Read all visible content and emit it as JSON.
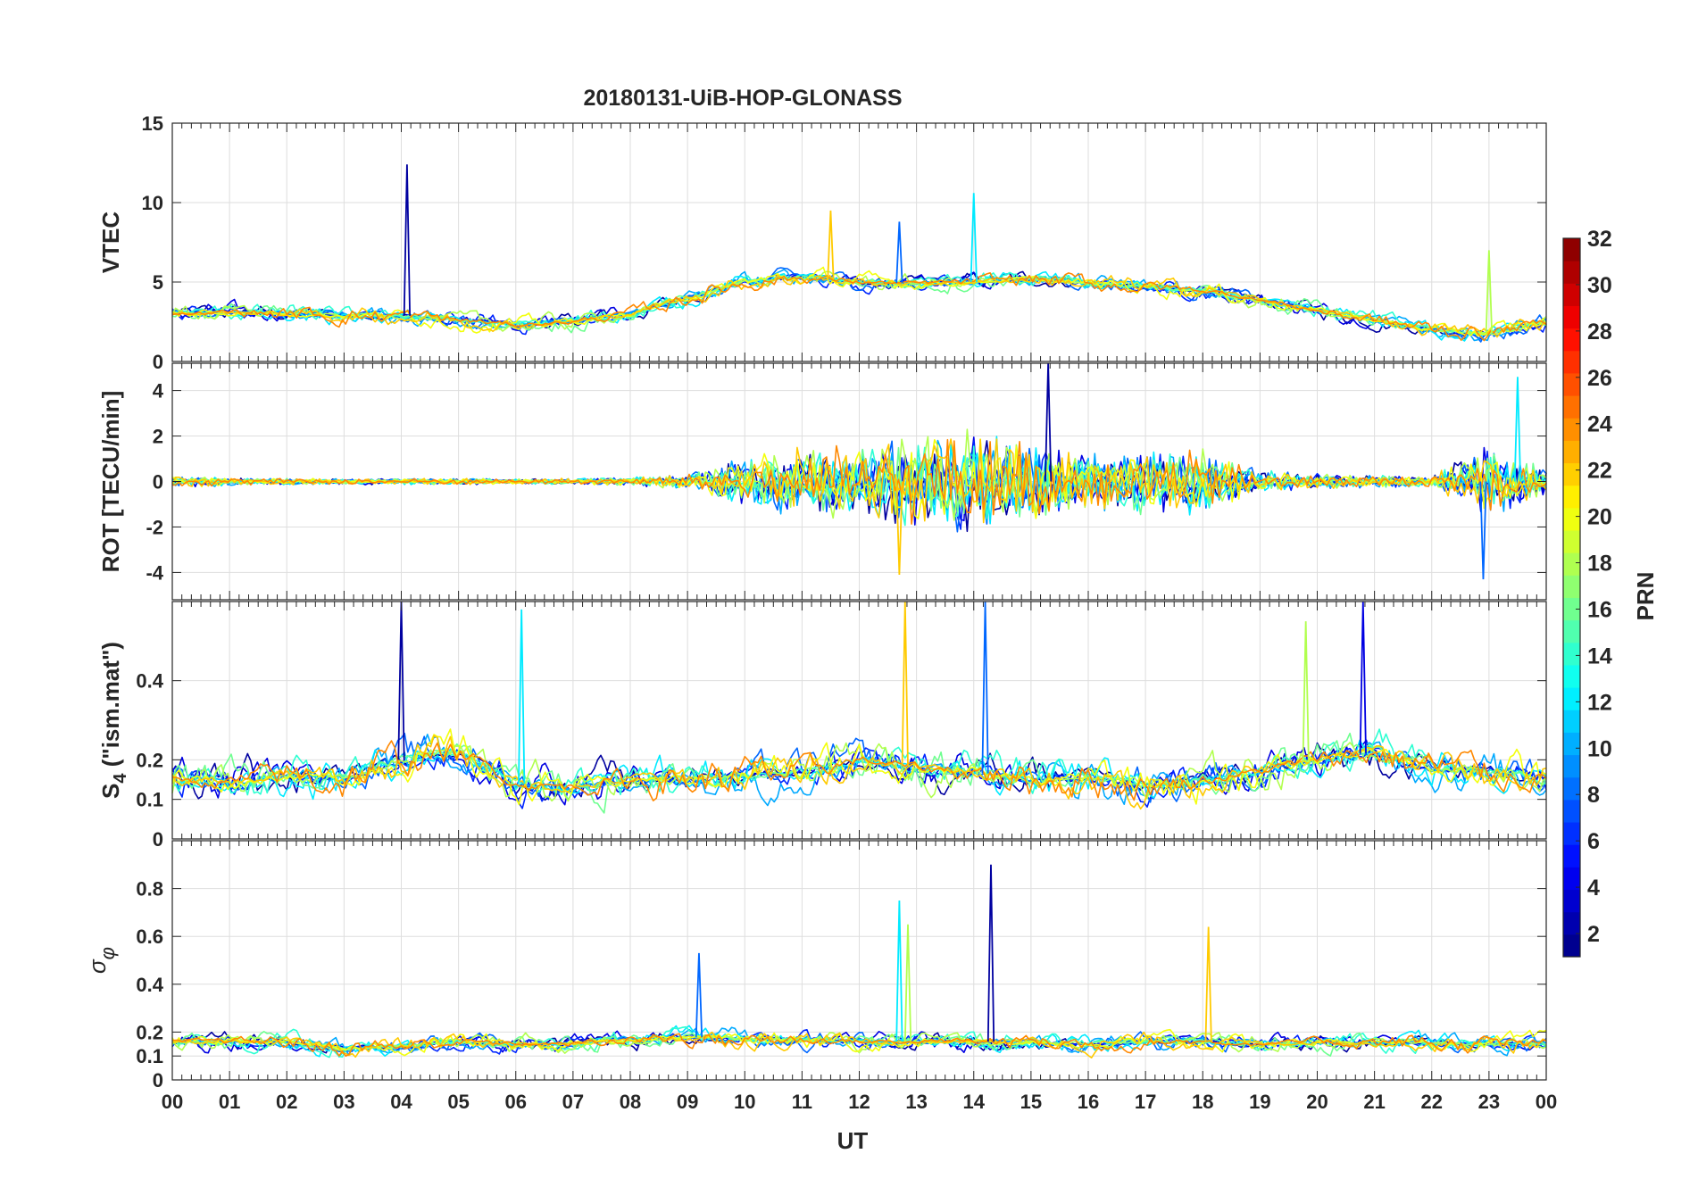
{
  "chart_data": [
    {
      "type": "line",
      "title": "20180131-UiB-HOP-GLONASS",
      "ylabel": "VTEC",
      "xlabel": "",
      "xlim": [
        0,
        24
      ],
      "ylim": [
        0,
        15
      ],
      "yticks": [
        "0",
        "5",
        "10",
        "15"
      ],
      "ytick_values": [
        0,
        5,
        10,
        15
      ],
      "envelope": {
        "x": [
          0,
          1,
          2,
          3,
          4,
          5,
          6,
          7,
          8,
          9,
          10,
          11,
          12,
          13,
          14,
          15,
          16,
          17,
          18,
          19,
          20,
          21,
          22,
          23,
          24
        ],
        "y": [
          3.0,
          3.1,
          3.0,
          2.9,
          2.9,
          2.6,
          2.3,
          2.5,
          3.0,
          4.0,
          5.0,
          5.3,
          5.0,
          4.9,
          5.0,
          5.2,
          4.9,
          4.7,
          4.5,
          3.9,
          3.2,
          2.6,
          2.0,
          1.8,
          2.5
        ],
        "noise": 1.3,
        "spikes": [
          {
            "x": 4.1,
            "y": 12.4
          },
          {
            "x": 14.0,
            "y": 10.6
          },
          {
            "x": 11.5,
            "y": 9.5
          },
          {
            "x": 12.7,
            "y": 8.8
          },
          {
            "x": 23.0,
            "y": 7.0
          }
        ]
      }
    },
    {
      "type": "line",
      "ylabel": "ROT [TECU/min]",
      "xlim": [
        0,
        24
      ],
      "ylim": [
        -5.2,
        5.2
      ],
      "yticks": [
        "-4",
        "-2",
        "0",
        "2",
        "4"
      ],
      "ytick_values": [
        -4,
        -2,
        0,
        2,
        4
      ],
      "envelope": {
        "x": [
          0,
          1,
          2,
          3,
          4,
          5,
          6,
          7,
          8,
          9,
          10,
          11,
          12,
          13,
          14,
          15,
          16,
          17,
          18,
          19,
          20,
          21,
          22,
          23,
          24
        ],
        "y": [
          0,
          0,
          0,
          0,
          0,
          0,
          0,
          0,
          0,
          0,
          0,
          0,
          0,
          0,
          0,
          0,
          0,
          0,
          0,
          0,
          0,
          0,
          0,
          0,
          0
        ],
        "amplitude": [
          0.3,
          0.2,
          0.15,
          0.15,
          0.15,
          0.15,
          0.12,
          0.15,
          0.2,
          0.35,
          1.2,
          1.6,
          1.7,
          2.2,
          2.4,
          2.0,
          1.4,
          1.6,
          1.6,
          0.5,
          0.35,
          0.3,
          0.25,
          1.8,
          0.6
        ],
        "spikes": [
          {
            "x": 15.3,
            "y": 5.2
          },
          {
            "x": 23.5,
            "y": 4.6
          },
          {
            "x": 12.7,
            "y": -4.1
          },
          {
            "x": 22.9,
            "y": -4.3
          }
        ]
      }
    },
    {
      "type": "line",
      "ylabel": "S4 (\"ism.mat\")",
      "xlim": [
        0,
        24
      ],
      "ylim": [
        0,
        0.6
      ],
      "yticks": [
        "0",
        "0.1",
        "0.2",
        "0.4"
      ],
      "ytick_values": [
        0,
        0.1,
        0.2,
        0.4
      ],
      "envelope": {
        "x": [
          0,
          1,
          2,
          3,
          4,
          5,
          6,
          7,
          8,
          9,
          10,
          11,
          12,
          13,
          14,
          15,
          16,
          17,
          18,
          19,
          20,
          21,
          22,
          23,
          24
        ],
        "y": [
          0.15,
          0.14,
          0.16,
          0.15,
          0.2,
          0.22,
          0.14,
          0.13,
          0.15,
          0.15,
          0.16,
          0.17,
          0.2,
          0.18,
          0.17,
          0.15,
          0.16,
          0.13,
          0.15,
          0.17,
          0.2,
          0.22,
          0.18,
          0.17,
          0.15
        ],
        "noise": 0.12,
        "spikes": [
          {
            "x": 4.0,
            "y": 0.6
          },
          {
            "x": 6.1,
            "y": 0.58
          },
          {
            "x": 12.8,
            "y": 0.6
          },
          {
            "x": 14.2,
            "y": 0.6
          },
          {
            "x": 19.8,
            "y": 0.55
          },
          {
            "x": 20.8,
            "y": 0.6
          }
        ]
      }
    },
    {
      "type": "line",
      "ylabel": "σ φ",
      "xlabel": "UT",
      "xlim": [
        0,
        24
      ],
      "ylim": [
        0,
        1.0
      ],
      "yticks": [
        "0",
        "0.1",
        "0.2",
        "0.4",
        "0.6",
        "0.8"
      ],
      "ytick_values": [
        0,
        0.1,
        0.2,
        0.4,
        0.6,
        0.8
      ],
      "xticks": [
        "00",
        "01",
        "02",
        "03",
        "04",
        "05",
        "06",
        "07",
        "08",
        "09",
        "10",
        "11",
        "12",
        "13",
        "14",
        "15",
        "16",
        "17",
        "18",
        "19",
        "20",
        "21",
        "22",
        "23",
        "00"
      ],
      "envelope": {
        "x": [
          0,
          1,
          2,
          3,
          4,
          5,
          6,
          7,
          8,
          9,
          10,
          11,
          12,
          13,
          14,
          15,
          16,
          17,
          18,
          19,
          20,
          21,
          22,
          23,
          24
        ],
        "y": [
          0.16,
          0.16,
          0.16,
          0.13,
          0.14,
          0.16,
          0.15,
          0.15,
          0.17,
          0.18,
          0.17,
          0.17,
          0.16,
          0.16,
          0.16,
          0.16,
          0.15,
          0.16,
          0.16,
          0.15,
          0.16,
          0.16,
          0.15,
          0.15,
          0.15
        ],
        "noise": 0.09,
        "spikes": [
          {
            "x": 14.3,
            "y": 0.9
          },
          {
            "x": 12.7,
            "y": 0.75
          },
          {
            "x": 18.1,
            "y": 0.64
          },
          {
            "x": 9.2,
            "y": 0.53
          },
          {
            "x": 12.85,
            "y": 0.65
          }
        ]
      }
    }
  ],
  "colorbar": {
    "label": "PRN",
    "range": [
      1,
      32
    ],
    "ticks": [
      "2",
      "4",
      "6",
      "8",
      "10",
      "12",
      "14",
      "16",
      "18",
      "20",
      "22",
      "24",
      "26",
      "28",
      "30",
      "32"
    ],
    "tick_values": [
      2,
      4,
      6,
      8,
      10,
      12,
      14,
      16,
      18,
      20,
      22,
      24,
      26,
      28,
      30,
      32
    ],
    "colormap": "jet"
  },
  "series_prn": [
    2,
    4,
    6,
    8,
    10,
    12,
    14,
    16,
    18,
    20,
    22,
    24
  ]
}
